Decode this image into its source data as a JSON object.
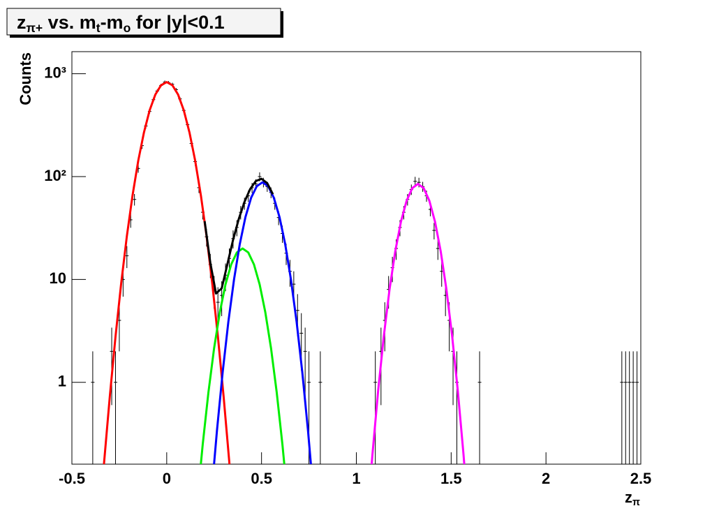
{
  "chart_data": {
    "type": "scatter",
    "title": [
      {
        "text": "z"
      },
      {
        "text": "π+",
        "sub": true
      },
      {
        "text": " vs. m"
      },
      {
        "text": "t",
        "sub": true
      },
      {
        "text": "-m"
      },
      {
        "text": "o",
        "sub": true
      },
      {
        "text": " for |y|<0.1"
      }
    ],
    "y_label": "Counts",
    "x_label": [
      {
        "text": "z"
      },
      {
        "text": "π",
        "sub": true
      }
    ],
    "log_y": true,
    "xlim": [
      -0.5,
      2.5
    ],
    "xticks": [
      -0.5,
      0,
      0.5,
      1,
      1.5,
      2,
      2.5
    ],
    "ylim": [
      0.16,
      1640
    ],
    "yticks": [
      1,
      10,
      {
        "value": 100,
        "label": "10²"
      },
      {
        "value": 1000,
        "label": "10³"
      }
    ],
    "points": {
      "color": "#000000",
      "x": [
        -0.39,
        -0.29,
        -0.27,
        -0.25,
        -0.23,
        -0.21,
        -0.19,
        -0.17,
        -0.15,
        -0.13,
        -0.11,
        -0.09,
        -0.07,
        -0.05,
        -0.03,
        -0.01,
        0.01,
        0.03,
        0.05,
        0.07,
        0.09,
        0.11,
        0.13,
        0.15,
        0.17,
        0.19,
        0.21,
        0.23,
        0.25,
        0.27,
        0.29,
        0.31,
        0.33,
        0.35,
        0.37,
        0.39,
        0.41,
        0.43,
        0.45,
        0.47,
        0.49,
        0.51,
        0.53,
        0.55,
        0.57,
        0.59,
        0.61,
        0.63,
        0.65,
        0.67,
        0.69,
        0.71,
        0.73,
        0.75,
        0.81,
        1.1,
        1.13,
        1.15,
        1.17,
        1.19,
        1.21,
        1.23,
        1.25,
        1.27,
        1.29,
        1.31,
        1.33,
        1.35,
        1.37,
        1.39,
        1.41,
        1.43,
        1.45,
        1.47,
        1.49,
        1.51,
        1.53,
        1.65,
        2.4,
        2.42,
        2.44,
        2.46,
        2.48
      ],
      "values": [
        1,
        2,
        1,
        4,
        10,
        17,
        38,
        60,
        120,
        200,
        310,
        430,
        560,
        680,
        770,
        830,
        820,
        790,
        700,
        570,
        440,
        320,
        210,
        140,
        78,
        45,
        26,
        14,
        8,
        6,
        7,
        11,
        16,
        25,
        32,
        45,
        55,
        65,
        78,
        85,
        100,
        88,
        80,
        70,
        55,
        40,
        28,
        18,
        12,
        9,
        5,
        3,
        2,
        1,
        1,
        1,
        2,
        4,
        8,
        13,
        20,
        32,
        45,
        60,
        75,
        90,
        88,
        80,
        65,
        48,
        30,
        20,
        12,
        7,
        4,
        2,
        1,
        1,
        1,
        1,
        1,
        1,
        1
      ],
      "errors": [
        1,
        1.4,
        1,
        2,
        3.2,
        4.1,
        6.2,
        7.7,
        11,
        14,
        18,
        21,
        24,
        26,
        28,
        29,
        29,
        28,
        26,
        24,
        21,
        18,
        14,
        12,
        8.8,
        6.7,
        5.1,
        3.7,
        2.8,
        2.4,
        2.6,
        3.3,
        4,
        5,
        5.7,
        6.7,
        7.4,
        8.1,
        8.8,
        9.2,
        10,
        9.4,
        8.9,
        8.4,
        7.4,
        6.3,
        5.3,
        4.2,
        3.5,
        3,
        2.2,
        1.7,
        1.4,
        1,
        1,
        1,
        1.4,
        2,
        2.8,
        3.6,
        4.5,
        5.7,
        6.7,
        7.7,
        8.7,
        9.5,
        9.4,
        8.9,
        8.1,
        6.9,
        5.5,
        4.5,
        3.5,
        2.6,
        2,
        1.4,
        1,
        1,
        1,
        1,
        1,
        1,
        1
      ]
    },
    "fits": [
      {
        "color": "#ff0000",
        "x": [
          -0.36,
          -0.33,
          -0.3,
          -0.27,
          -0.24,
          -0.21,
          -0.18,
          -0.15,
          -0.12,
          -0.09,
          -0.06,
          -0.03,
          0,
          0.03,
          0.06,
          0.09,
          0.12,
          0.15,
          0.18,
          0.21,
          0.24,
          0.27,
          0.3,
          0.33,
          0.36
        ],
        "values": [
          0.033,
          0.168,
          0.73,
          2.78,
          9.2,
          26.5,
          66,
          143,
          269,
          441,
          627,
          773,
          830,
          773,
          627,
          441,
          269,
          143,
          66,
          26.5,
          9.2,
          2.78,
          0.73,
          0.168,
          0.033
        ]
      },
      {
        "color": "#00ee00",
        "x": [
          0.16,
          0.19,
          0.22,
          0.25,
          0.28,
          0.31,
          0.34,
          0.37,
          0.4,
          0.43,
          0.46,
          0.49,
          0.52,
          0.55,
          0.58,
          0.61,
          0.64
        ],
        "values": [
          0.066,
          0.25,
          0.8,
          2.15,
          4.79,
          8.95,
          14.0,
          18.3,
          20,
          18.3,
          14.0,
          8.95,
          4.79,
          2.15,
          0.8,
          0.25,
          0.066
        ]
      },
      {
        "color": "#0000ff",
        "x": [
          0.235,
          0.265,
          0.295,
          0.325,
          0.355,
          0.385,
          0.415,
          0.445,
          0.475,
          0.505,
          0.535,
          0.565,
          0.595,
          0.625,
          0.655,
          0.685,
          0.715,
          0.745,
          0.775
        ],
        "values": [
          0.078,
          0.34,
          1.25,
          3.87,
          10.0,
          21.9,
          40.3,
          62.2,
          80.7,
          88,
          80.7,
          62.2,
          40.3,
          21.9,
          10.0,
          3.87,
          1.25,
          0.34,
          0.078
        ]
      },
      {
        "color": "#000000",
        "x": [
          0.2,
          0.23,
          0.26,
          0.29,
          0.32,
          0.35,
          0.38,
          0.41,
          0.44,
          0.47,
          0.5,
          0.53,
          0.56
        ],
        "values": [
          36.9,
          14.5,
          7.3,
          8.2,
          14.1,
          24.3,
          38.7,
          56.7,
          75.7,
          90.5,
          95.2,
          86.4,
          67.3
        ]
      },
      {
        "color": "#ff00ff",
        "x": [
          1.055,
          1.085,
          1.115,
          1.145,
          1.175,
          1.205,
          1.235,
          1.265,
          1.295,
          1.325,
          1.355,
          1.385,
          1.415,
          1.445,
          1.475,
          1.505,
          1.535,
          1.565,
          1.595
        ],
        "values": [
          0.04,
          0.2,
          0.83,
          2.83,
          8.0,
          18.7,
          36.3,
          58.2,
          77.3,
          85,
          77.3,
          58.2,
          36.3,
          18.7,
          8.0,
          2.83,
          0.83,
          0.2,
          0.04
        ]
      }
    ]
  }
}
